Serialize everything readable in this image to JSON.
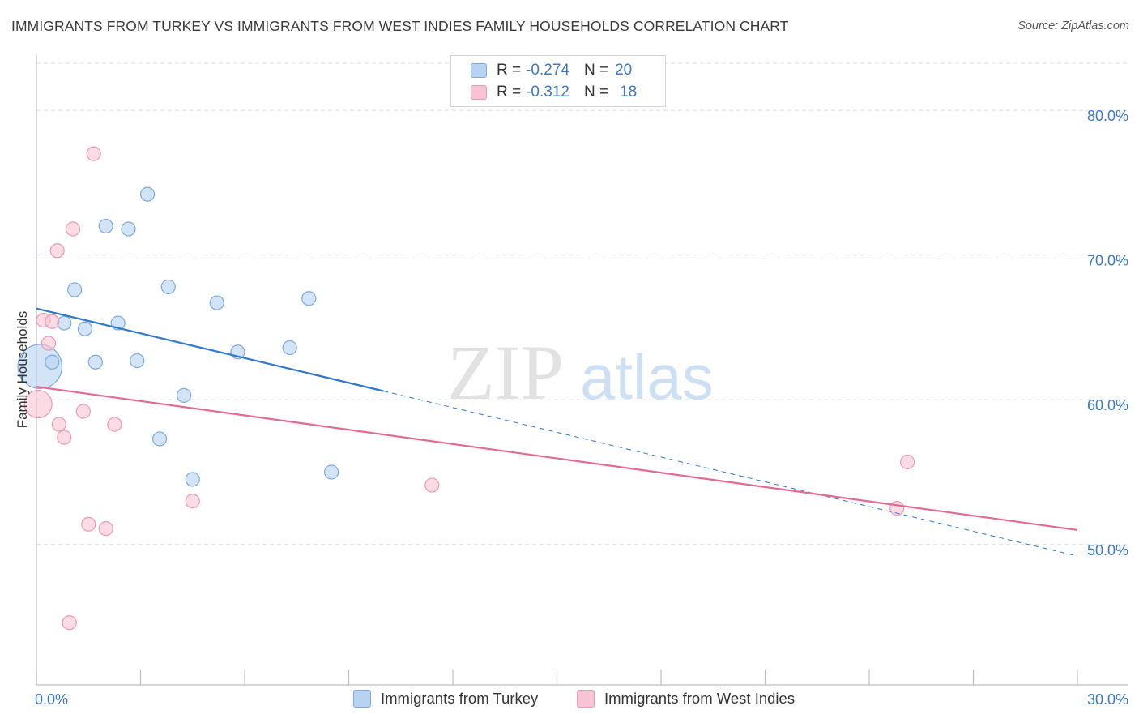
{
  "title": "IMMIGRANTS FROM TURKEY VS IMMIGRANTS FROM WEST INDIES FAMILY HOUSEHOLDS CORRELATION CHART",
  "source": "Source: ZipAtlas.com",
  "watermark": {
    "zip": "ZIP",
    "atlas": "atlas"
  },
  "legend": {
    "r_label": "R =",
    "n_label": "N =",
    "items": [
      {
        "r": "-0.274",
        "n": "20"
      },
      {
        "r": "-0.312",
        "n": "18"
      }
    ]
  },
  "colors": {
    "turkey_fill": "#b8d2f2",
    "turkey_stroke": "#7aaae0",
    "turkey_line": "#2f78cf",
    "westindies_fill": "#f8c4d4",
    "westindies_stroke": "#eb9ab4",
    "westindies_line": "#e46a94",
    "axis_text": "#3a78c8",
    "grid": "#dcdcdc"
  },
  "chart_data": {
    "type": "scatter",
    "title": "IMMIGRANTS FROM TURKEY VS IMMIGRANTS FROM WEST INDIES FAMILY HOUSEHOLDS CORRELATION CHART",
    "xlabel": "",
    "ylabel": "Family Households",
    "xlim": [
      0,
      30
    ],
    "ylim": [
      40.3,
      83.7
    ],
    "x_tick_labels": [
      "0.0%",
      "30.0%"
    ],
    "y_ticks": [
      50,
      60,
      70,
      80
    ],
    "y_tick_labels": [
      "50.0%",
      "60.0%",
      "70.0%",
      "80.0%"
    ],
    "series": [
      {
        "name": "Immigrants from Turkey",
        "r": -0.274,
        "n": 20,
        "points": [
          {
            "x": 0.1,
            "y": 62.3,
            "size": 3.2
          },
          {
            "x": 0.45,
            "y": 62.6
          },
          {
            "x": 0.8,
            "y": 65.3
          },
          {
            "x": 1.1,
            "y": 67.6
          },
          {
            "x": 1.4,
            "y": 64.9
          },
          {
            "x": 1.7,
            "y": 62.6
          },
          {
            "x": 2.0,
            "y": 72.0
          },
          {
            "x": 2.35,
            "y": 65.3
          },
          {
            "x": 2.65,
            "y": 71.8
          },
          {
            "x": 2.9,
            "y": 62.7
          },
          {
            "x": 3.2,
            "y": 74.2
          },
          {
            "x": 3.55,
            "y": 57.3
          },
          {
            "x": 3.8,
            "y": 67.8
          },
          {
            "x": 4.25,
            "y": 60.3
          },
          {
            "x": 4.5,
            "y": 54.5
          },
          {
            "x": 5.2,
            "y": 66.7
          },
          {
            "x": 5.8,
            "y": 63.3
          },
          {
            "x": 7.3,
            "y": 63.6
          },
          {
            "x": 7.85,
            "y": 67.0
          },
          {
            "x": 8.5,
            "y": 55.0
          }
        ],
        "trend": {
          "x0": 0,
          "y0": 66.3,
          "x1": 10.0,
          "y1": 60.6,
          "dash_to_x": 30,
          "dash_to_y": 49.2
        }
      },
      {
        "name": "Immigrants from West Indies",
        "r": -0.312,
        "n": 18,
        "points": [
          {
            "x": 0.05,
            "y": 59.7,
            "size": 2.0
          },
          {
            "x": 0.2,
            "y": 65.5
          },
          {
            "x": 0.35,
            "y": 63.9
          },
          {
            "x": 0.45,
            "y": 65.4
          },
          {
            "x": 0.6,
            "y": 70.3
          },
          {
            "x": 0.65,
            "y": 58.3
          },
          {
            "x": 0.8,
            "y": 57.4
          },
          {
            "x": 0.95,
            "y": 44.6
          },
          {
            "x": 1.05,
            "y": 71.8
          },
          {
            "x": 1.35,
            "y": 59.2
          },
          {
            "x": 1.5,
            "y": 51.4
          },
          {
            "x": 1.65,
            "y": 77.0
          },
          {
            "x": 2.0,
            "y": 51.1
          },
          {
            "x": 2.25,
            "y": 58.3
          },
          {
            "x": 4.5,
            "y": 53.0
          },
          {
            "x": 11.4,
            "y": 54.1
          },
          {
            "x": 24.8,
            "y": 52.5
          },
          {
            "x": 25.1,
            "y": 55.7
          }
        ],
        "trend": {
          "x0": 0,
          "y0": 60.9,
          "x1": 30,
          "y1": 51.0
        }
      }
    ]
  }
}
